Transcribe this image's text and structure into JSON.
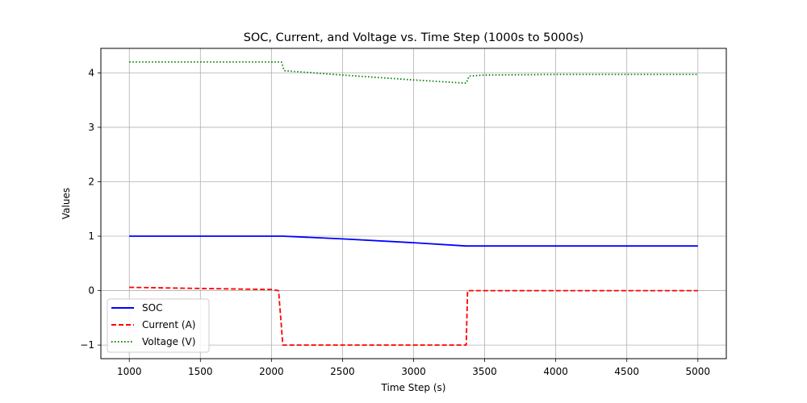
{
  "chart_data": {
    "type": "line",
    "title": "SOC, Current, and Voltage vs. Time Step (1000s to 5000s)",
    "xlabel": "Time Step (s)",
    "ylabel": "Values",
    "xlim": [
      800,
      5200
    ],
    "ylim": [
      -1.25,
      4.45
    ],
    "xticks": [
      1000,
      1500,
      2000,
      2500,
      3000,
      3500,
      4000,
      4500,
      5000
    ],
    "yticks": [
      -1,
      0,
      1,
      2,
      3,
      4
    ],
    "ytick_labels": [
      "−1",
      "0",
      "1",
      "2",
      "3",
      "4"
    ],
    "grid": true,
    "legend_position": "lower-left",
    "series": [
      {
        "name": "SOC",
        "color": "#0000ff",
        "style": "solid",
        "x": [
          1000,
          1500,
          2000,
          2080,
          2500,
          3000,
          3370,
          3500,
          4000,
          4500,
          5000
        ],
        "y": [
          1.0,
          1.0,
          1.0,
          1.0,
          0.95,
          0.88,
          0.82,
          0.82,
          0.82,
          0.82,
          0.82
        ]
      },
      {
        "name": "Current (A)",
        "color": "#ff0000",
        "style": "dashed",
        "x": [
          1000,
          1500,
          2000,
          2050,
          2080,
          2500,
          3000,
          3370,
          3380,
          3500,
          4000,
          4500,
          5000
        ],
        "y": [
          0.06,
          0.04,
          0.02,
          0.0,
          -1.0,
          -1.0,
          -1.0,
          -1.0,
          0.0,
          0.0,
          0.0,
          0.0,
          0.0
        ]
      },
      {
        "name": "Voltage (V)",
        "color": "#008000",
        "style": "dotted",
        "x": [
          1000,
          1500,
          2000,
          2070,
          2090,
          2500,
          3000,
          3370,
          3390,
          3500,
          4000,
          4500,
          5000
        ],
        "y": [
          4.2,
          4.2,
          4.2,
          4.2,
          4.04,
          3.96,
          3.87,
          3.81,
          3.94,
          3.96,
          3.97,
          3.97,
          3.97
        ]
      }
    ]
  }
}
